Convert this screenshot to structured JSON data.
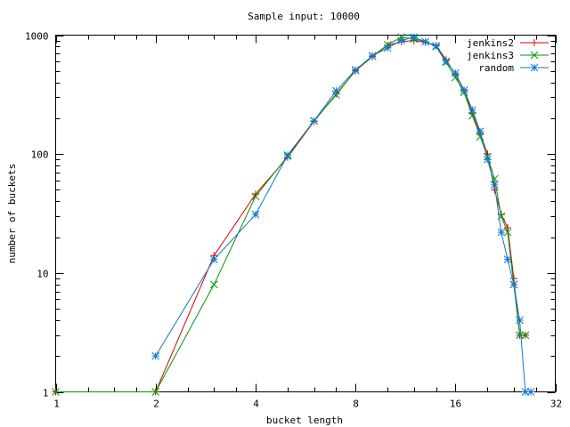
{
  "chart_data": {
    "type": "line",
    "title": "Sample input: 10000",
    "xlabel": "bucket length",
    "ylabel": "number of buckets",
    "x_scale": "log2",
    "y_scale": "log10",
    "xlim": [
      1,
      32
    ],
    "ylim": [
      1,
      1000
    ],
    "x_ticks": [
      1,
      2,
      4,
      8,
      16,
      32
    ],
    "x_tick_labels": [
      "1",
      "2",
      "4",
      "8",
      "16",
      "32"
    ],
    "y_ticks": [
      1,
      10,
      100,
      1000
    ],
    "y_tick_labels": [
      "1",
      "10",
      "100",
      "1000"
    ],
    "grid": false,
    "legend_position": "top-right",
    "series": [
      {
        "name": "jenkins2",
        "color": "#dd0000",
        "marker": "plus",
        "points": [
          [
            1,
            1
          ],
          [
            2,
            1
          ],
          [
            3,
            14
          ],
          [
            4,
            46
          ],
          [
            5,
            94
          ],
          [
            6,
            188
          ],
          [
            7,
            320
          ],
          [
            8,
            500
          ],
          [
            9,
            660
          ],
          [
            10,
            820
          ],
          [
            11,
            880
          ],
          [
            12,
            900
          ],
          [
            13,
            870
          ],
          [
            14,
            820
          ],
          [
            15,
            620
          ],
          [
            16,
            470
          ],
          [
            17,
            340
          ],
          [
            18,
            220
          ],
          [
            19,
            150
          ],
          [
            20,
            100
          ],
          [
            21,
            50
          ],
          [
            22,
            31
          ],
          [
            23,
            24
          ],
          [
            24,
            9
          ],
          [
            25,
            3
          ],
          [
            26,
            3
          ]
        ]
      },
      {
        "name": "jenkins3",
        "color": "#009900",
        "marker": "cross",
        "points": [
          [
            1,
            1
          ],
          [
            2,
            1
          ],
          [
            3,
            8
          ],
          [
            4,
            44
          ],
          [
            5,
            96
          ],
          [
            6,
            190
          ],
          [
            7,
            315
          ],
          [
            8,
            505
          ],
          [
            9,
            665
          ],
          [
            10,
            830
          ],
          [
            11,
            960
          ],
          [
            12,
            930
          ],
          [
            13,
            880
          ],
          [
            14,
            800
          ],
          [
            15,
            590
          ],
          [
            16,
            440
          ],
          [
            17,
            330
          ],
          [
            18,
            210
          ],
          [
            19,
            140
          ],
          [
            20,
            95
          ],
          [
            21,
            62
          ],
          [
            22,
            30
          ],
          [
            23,
            22
          ],
          [
            24,
            8
          ],
          [
            25,
            3
          ],
          [
            26,
            3
          ]
        ]
      },
      {
        "name": "random",
        "color": "#1077cc",
        "marker": "star",
        "points": [
          [
            2,
            2
          ],
          [
            3,
            13
          ],
          [
            4,
            31
          ],
          [
            5,
            98
          ],
          [
            6,
            190
          ],
          [
            7,
            340
          ],
          [
            8,
            510
          ],
          [
            9,
            670
          ],
          [
            10,
            780
          ],
          [
            11,
            900
          ],
          [
            12,
            960
          ],
          [
            13,
            880
          ],
          [
            14,
            810
          ],
          [
            15,
            600
          ],
          [
            16,
            480
          ],
          [
            17,
            345
          ],
          [
            18,
            235
          ],
          [
            19,
            155
          ],
          [
            20,
            90
          ],
          [
            21,
            55
          ],
          [
            22,
            22
          ],
          [
            23,
            13
          ],
          [
            24,
            8
          ],
          [
            25,
            4
          ],
          [
            26,
            1
          ],
          [
            27,
            1
          ]
        ]
      }
    ]
  }
}
